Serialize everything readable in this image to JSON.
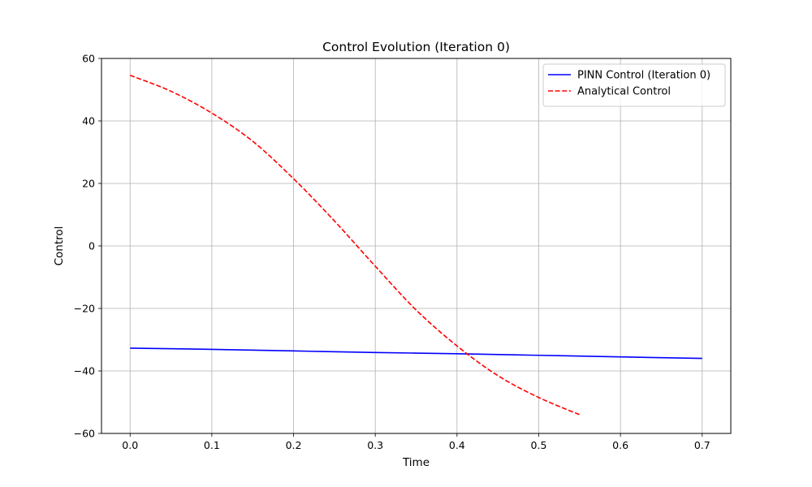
{
  "chart_data": {
    "type": "line",
    "title": "Control Evolution (Iteration 0)",
    "xlabel": "Time",
    "ylabel": "Control",
    "xlim": [
      -0.035,
      0.735
    ],
    "ylim": [
      -60,
      60
    ],
    "xticks": [
      0.0,
      0.1,
      0.2,
      0.3,
      0.4,
      0.5,
      0.6,
      0.7
    ],
    "xtick_labels": [
      "0.0",
      "0.1",
      "0.2",
      "0.3",
      "0.4",
      "0.5",
      "0.6",
      "0.7"
    ],
    "yticks": [
      -60,
      -40,
      -20,
      0,
      20,
      40,
      60
    ],
    "ytick_labels": [
      "−60",
      "−40",
      "−20",
      "0",
      "20",
      "40",
      "60"
    ],
    "grid": true,
    "legend_position": "top-right",
    "series": [
      {
        "name": "PINN Control (Iteration 0)",
        "color": "#0000ff",
        "style": "solid",
        "x": [
          0.0,
          0.1,
          0.2,
          0.3,
          0.4,
          0.5,
          0.6,
          0.7
        ],
        "y": [
          -32.7,
          -33.1,
          -33.6,
          -34.1,
          -34.5,
          -35.0,
          -35.5,
          -36.0
        ]
      },
      {
        "name": "Analytical Control",
        "color": "#ff0000",
        "style": "dashed",
        "x": [
          0.0,
          0.05,
          0.1,
          0.15,
          0.2,
          0.25,
          0.3,
          0.35,
          0.4,
          0.45,
          0.5,
          0.55
        ],
        "y": [
          54.6,
          49.5,
          42.5,
          33.5,
          21.5,
          8.0,
          -6.5,
          -20.5,
          -32.0,
          -41.5,
          -48.5,
          -54.0
        ]
      }
    ]
  }
}
